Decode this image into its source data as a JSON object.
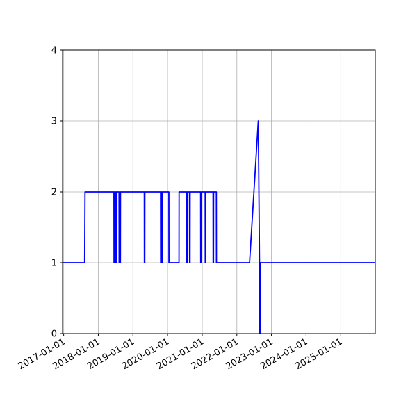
{
  "chart_data": {
    "type": "line",
    "title": "",
    "xlabel": "",
    "ylabel": "",
    "x_axis": "date",
    "xlim": [
      "2016-12-20",
      "2025-12-31"
    ],
    "ylim": [
      0,
      4
    ],
    "grid": true,
    "legend": "none",
    "x_tick_labels": [
      "2017-01-01",
      "2018-01-01",
      "2019-01-01",
      "2020-01-01",
      "2021-01-01",
      "2022-01-01",
      "2023-01-01",
      "2024-01-01",
      "2025-01-01"
    ],
    "y_tick_labels": [
      "0",
      "1",
      "2",
      "3",
      "4"
    ],
    "series": [
      {
        "color": "#0000ff",
        "points": [
          [
            "2016-12-20",
            1
          ],
          [
            "2017-08-10",
            1
          ],
          [
            "2017-08-14",
            2
          ],
          [
            "2018-06-15",
            2
          ],
          [
            "2018-06-16",
            1
          ],
          [
            "2018-06-20",
            1
          ],
          [
            "2018-06-21",
            2
          ],
          [
            "2018-06-28",
            2
          ],
          [
            "2018-06-29",
            1
          ],
          [
            "2018-07-03",
            1
          ],
          [
            "2018-07-04",
            2
          ],
          [
            "2018-07-10",
            2
          ],
          [
            "2018-07-11",
            1
          ],
          [
            "2018-07-15",
            1
          ],
          [
            "2018-07-16",
            2
          ],
          [
            "2018-08-08",
            2
          ],
          [
            "2018-08-09",
            1
          ],
          [
            "2018-08-22",
            1
          ],
          [
            "2018-08-23",
            2
          ],
          [
            "2019-05-01",
            2
          ],
          [
            "2019-05-02",
            1
          ],
          [
            "2019-05-06",
            1
          ],
          [
            "2019-05-07",
            2
          ],
          [
            "2019-10-20",
            2
          ],
          [
            "2019-10-21",
            1
          ],
          [
            "2019-10-25",
            1
          ],
          [
            "2019-10-26",
            2
          ],
          [
            "2019-11-01",
            2
          ],
          [
            "2019-11-02",
            1
          ],
          [
            "2019-11-06",
            1
          ],
          [
            "2019-11-07",
            2
          ],
          [
            "2020-01-15",
            2
          ],
          [
            "2020-01-16",
            1
          ],
          [
            "2020-05-01",
            1
          ],
          [
            "2020-05-02",
            2
          ],
          [
            "2020-07-20",
            2
          ],
          [
            "2020-07-21",
            1
          ],
          [
            "2020-07-25",
            1
          ],
          [
            "2020-07-26",
            2
          ],
          [
            "2020-08-20",
            2
          ],
          [
            "2020-08-21",
            1
          ],
          [
            "2020-08-25",
            1
          ],
          [
            "2020-08-26",
            2
          ],
          [
            "2020-12-15",
            2
          ],
          [
            "2020-12-16",
            1
          ],
          [
            "2020-12-20",
            1
          ],
          [
            "2020-12-21",
            2
          ],
          [
            "2021-02-01",
            2
          ],
          [
            "2021-02-02",
            1
          ],
          [
            "2021-02-06",
            1
          ],
          [
            "2021-02-07",
            2
          ],
          [
            "2021-04-25",
            2
          ],
          [
            "2021-04-26",
            1
          ],
          [
            "2021-04-30",
            1
          ],
          [
            "2021-05-01",
            2
          ],
          [
            "2021-05-30",
            2
          ],
          [
            "2021-05-31",
            1
          ],
          [
            "2022-05-15",
            1
          ],
          [
            "2022-08-15",
            3
          ],
          [
            "2022-08-28",
            1
          ],
          [
            "2022-08-29",
            0
          ],
          [
            "2022-09-03",
            0
          ],
          [
            "2022-09-04",
            1
          ],
          [
            "2025-12-31",
            1
          ]
        ]
      }
    ]
  }
}
